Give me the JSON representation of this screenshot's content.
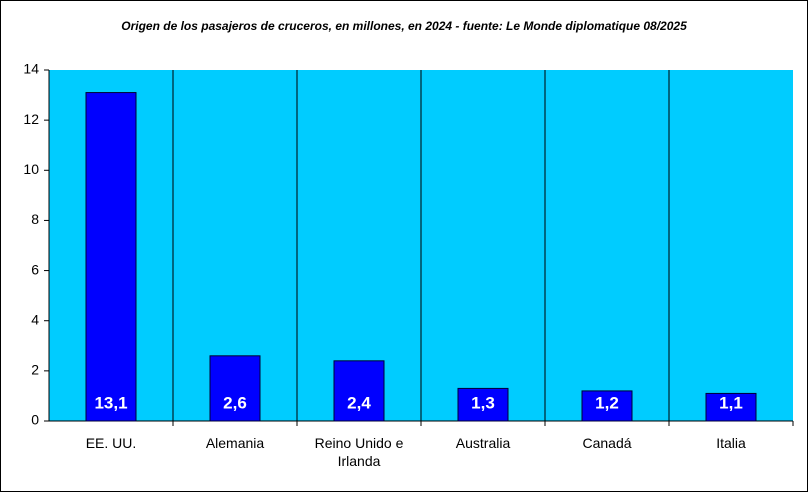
{
  "chart_data": {
    "type": "bar",
    "title": "Origen de los pasajeros de cruceros, en millones, en 2024 - fuente: Le Monde diplomatique 08/2025",
    "categories": [
      "EE. UU.",
      "Alemania",
      "Reino Unido e Irlanda",
      "Australia",
      "Canadá",
      "Italia"
    ],
    "values": [
      13.1,
      2.6,
      2.4,
      1.3,
      1.2,
      1.1
    ],
    "value_labels": [
      "13,1",
      "2,6",
      "2,4",
      "1,3",
      "1,2",
      "1,1"
    ],
    "color": "#0000ff",
    "ylim": [
      0,
      14
    ],
    "yticks": [
      0,
      2,
      4,
      6,
      8,
      10,
      12,
      14
    ]
  }
}
